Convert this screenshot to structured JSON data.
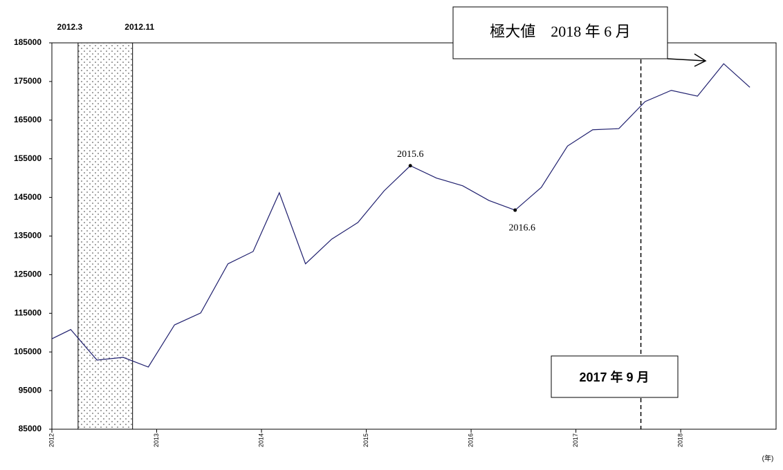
{
  "chart_data": {
    "type": "line",
    "x": [
      2012.0,
      2012.18,
      2012.43,
      2012.68,
      2012.92,
      2013.17,
      2013.42,
      2013.68,
      2013.92,
      2014.17,
      2014.42,
      2014.67,
      2014.92,
      2015.17,
      2015.42,
      2015.67,
      2015.92,
      2016.17,
      2016.42,
      2016.67,
      2016.92,
      2017.16,
      2017.41,
      2017.66,
      2017.91,
      2018.16,
      2018.41,
      2018.66
    ],
    "series": [
      {
        "color": "#1f1f6e",
        "values": [
          108400,
          110800,
          102900,
          103600,
          101100,
          112000,
          115100,
          127800,
          131000,
          146200,
          127800,
          134200,
          138500,
          146700,
          153200,
          150000,
          148000,
          144200,
          141700,
          147600,
          158300,
          162500,
          162800,
          169800,
          172700,
          171200,
          179600,
          173500
        ]
      }
    ],
    "xlim": [
      2012,
      2018.91
    ],
    "xticks": [
      2012,
      2013,
      2014,
      2015,
      2016,
      2017,
      2018
    ],
    "ylim": [
      85000,
      185000
    ],
    "yticks": [
      85000,
      95000,
      105000,
      115000,
      125000,
      135000,
      145000,
      155000,
      165000,
      175000,
      185000
    ],
    "x_unit": "(年)",
    "shaded_region": {
      "start": 2012.25,
      "end": 2012.77,
      "start_label": "2012.3",
      "end_label": "2012.11"
    },
    "vline": {
      "x": 2017.62,
      "label": "2017 年 9 月"
    },
    "peak_label": "極大値　2018 年 6 月",
    "point_labels": [
      {
        "text": "2015.6",
        "x": 2015.42,
        "y": 153200
      },
      {
        "text": "2016.6",
        "x": 2016.42,
        "y": 141700
      }
    ]
  }
}
